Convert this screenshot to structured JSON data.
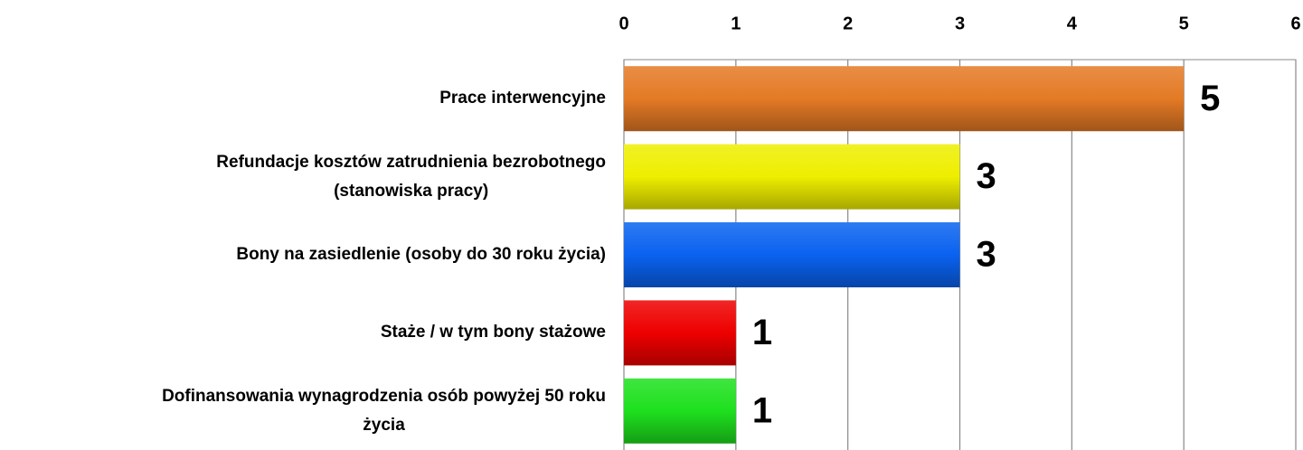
{
  "chart_data": {
    "type": "bar",
    "orientation": "horizontal",
    "categories": [
      "Prace interwencyjne",
      "Refundacje kosztów zatrudnienia bezrobotnego\n(stanowiska pracy)",
      "Bony na zasiedlenie (osoby do 30  roku życia)",
      "Staże / w tym bony stażowe",
      "Dofinansowania wynagrodzenia osób powyżej 50 roku\nżycia"
    ],
    "values": [
      5,
      3,
      3,
      1,
      1
    ],
    "colors": [
      "#e47a25",
      "#eeee00",
      "#0a62f0",
      "#ee0000",
      "#1ee01e"
    ],
    "xlim": [
      0,
      6
    ],
    "xticks": [
      0,
      1,
      2,
      3,
      4,
      5,
      6
    ],
    "grid": true
  }
}
